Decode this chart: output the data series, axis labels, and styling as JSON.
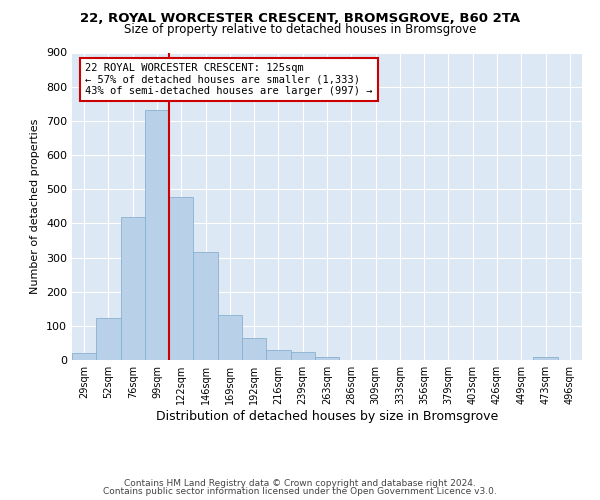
{
  "title1": "22, ROYAL WORCESTER CRESCENT, BROMSGROVE, B60 2TA",
  "title2": "Size of property relative to detached houses in Bromsgrove",
  "xlabel": "Distribution of detached houses by size in Bromsgrove",
  "ylabel": "Number of detached properties",
  "bin_labels": [
    "29sqm",
    "52sqm",
    "76sqm",
    "99sqm",
    "122sqm",
    "146sqm",
    "169sqm",
    "192sqm",
    "216sqm",
    "239sqm",
    "263sqm",
    "286sqm",
    "309sqm",
    "333sqm",
    "356sqm",
    "379sqm",
    "403sqm",
    "426sqm",
    "449sqm",
    "473sqm",
    "496sqm"
  ],
  "bar_values": [
    20,
    122,
    418,
    733,
    478,
    315,
    133,
    63,
    30,
    22,
    8,
    0,
    0,
    0,
    0,
    0,
    0,
    0,
    0,
    8,
    0
  ],
  "bar_color": "#b8d0e8",
  "bar_edgecolor": "#8ab0d0",
  "vline_color": "#cc0000",
  "vline_index": 4,
  "annotation_title": "22 ROYAL WORCESTER CRESCENT: 125sqm",
  "annotation_line2": "← 57% of detached houses are smaller (1,333)",
  "annotation_line3": "43% of semi-detached houses are larger (997) →",
  "annotation_box_edgecolor": "#cc0000",
  "ylim": [
    0,
    900
  ],
  "yticks": [
    0,
    100,
    200,
    300,
    400,
    500,
    600,
    700,
    800,
    900
  ],
  "footer1": "Contains HM Land Registry data © Crown copyright and database right 2024.",
  "footer2": "Contains public sector information licensed under the Open Government Licence v3.0.",
  "bg_color": "#dde8f5",
  "fig_bg": "#ffffff"
}
